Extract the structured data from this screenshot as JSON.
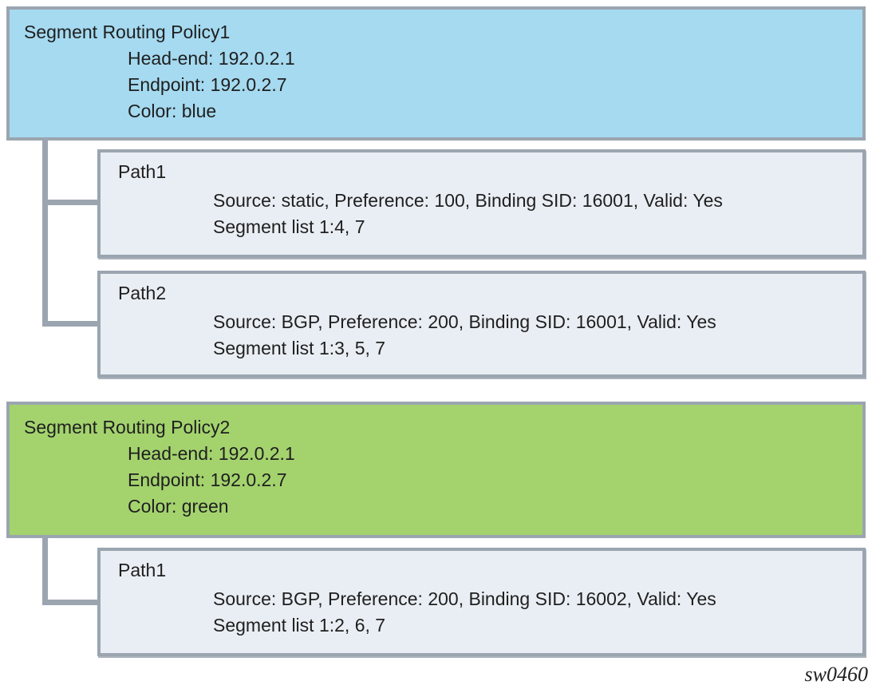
{
  "watermark": "sw0460",
  "colors": {
    "policy1_fill": "#a5daf0",
    "policy2_fill": "#a4d36e",
    "path_fill": "#e9eef4",
    "border_gray": "#9ba5b0",
    "text": "#1f1f1f"
  },
  "policies": [
    {
      "title": "Segment Routing Policy1",
      "details": [
        "Head-end: 192.0.2.1",
        "Endpoint: 192.0.2.7",
        "Color: blue"
      ],
      "paths": [
        {
          "label": "Path1",
          "line1": "Source: static, Preference: 100, Binding SID: 16001, Valid: Yes",
          "line2": "Segment list 1:4, 7"
        },
        {
          "label": "Path2",
          "line1": "Source: BGP, Preference: 200, Binding SID: 16001, Valid: Yes",
          "line2": "Segment list 1:3, 5, 7"
        }
      ]
    },
    {
      "title": "Segment Routing Policy2",
      "details": [
        "Head-end: 192.0.2.1",
        "Endpoint: 192.0.2.7",
        "Color: green"
      ],
      "paths": [
        {
          "label": "Path1",
          "line1": "Source: BGP, Preference: 200, Binding SID: 16002, Valid: Yes",
          "line2": "Segment list 1:2, 6, 7"
        }
      ]
    }
  ]
}
